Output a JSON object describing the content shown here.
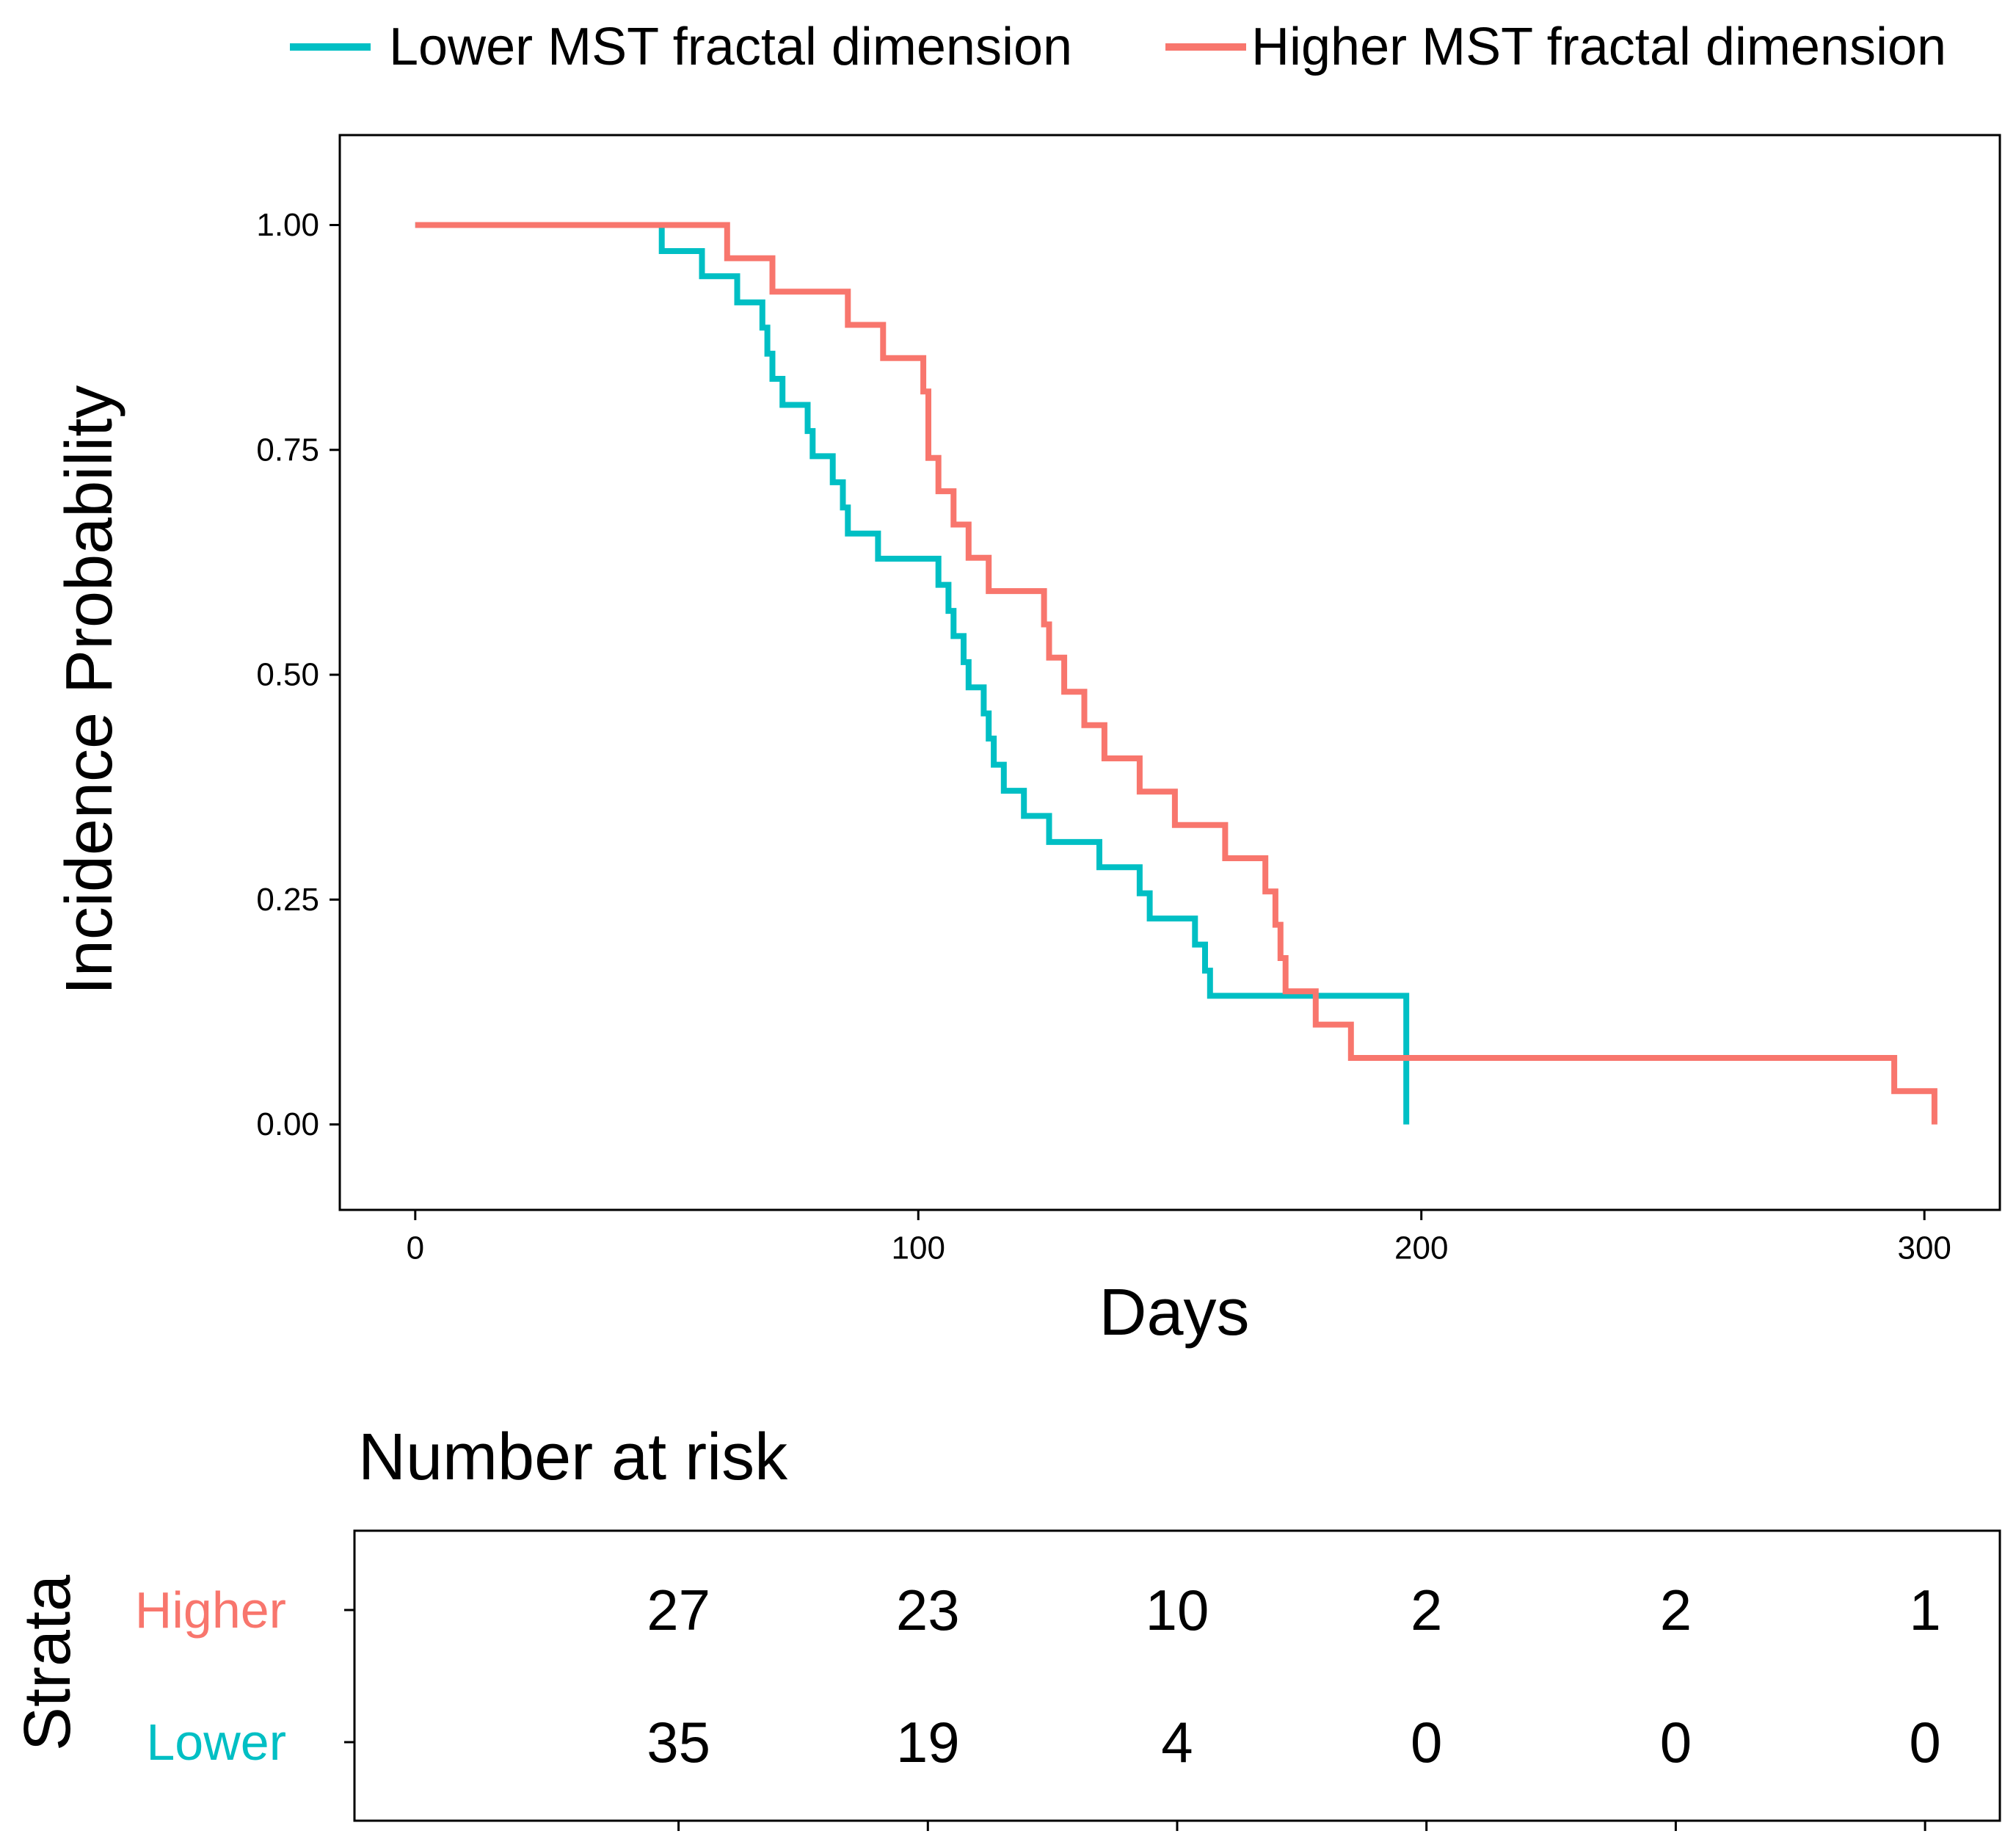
{
  "legend": {
    "items": [
      {
        "name": "Lower MST fractal dimension",
        "color": "#00BFC4"
      },
      {
        "name": "Higher MST fractal dimension",
        "color": "#F8766D"
      }
    ]
  },
  "risk_table": {
    "title": "Number at risk",
    "strata_label": "Strata",
    "strata": [
      {
        "label": "Higher",
        "color": "#F8766D",
        "counts": [
          "27",
          "23",
          "10",
          "2",
          "2",
          "1"
        ]
      },
      {
        "label": "Lower",
        "color": "#00BFC4",
        "counts": [
          "35",
          "19",
          "4",
          "0",
          "0",
          "0"
        ]
      }
    ]
  },
  "chart_data": {
    "type": "line",
    "title": "",
    "xlabel": "Days",
    "ylabel": "Incidence Probability",
    "xlim": [
      -15,
      315
    ],
    "ylim": [
      -0.095,
      1.1
    ],
    "x_ticks": [
      0,
      100,
      200,
      300
    ],
    "x_tick_labels": [
      "0",
      "100",
      "200",
      "300"
    ],
    "y_ticks": [
      0,
      0.25,
      0.5,
      0.75,
      1
    ],
    "y_tick_labels": [
      "0.00",
      "0.25",
      "0.50",
      "0.75",
      "1.00"
    ],
    "risk_times": [
      50,
      100,
      150,
      200,
      250,
      300
    ],
    "grid": false,
    "legend_position": "top",
    "series": [
      {
        "name": "Lower MST fractal dimension",
        "color": "#00BFC4",
        "step": true,
        "x": [
          0,
          49,
          57,
          64,
          69,
          70,
          71,
          73,
          78,
          79,
          83,
          85,
          86,
          92,
          104,
          106,
          107,
          109,
          110,
          113,
          114,
          115,
          117,
          121,
          126,
          136,
          144,
          146,
          155,
          157,
          158,
          197,
          197
        ],
        "y": [
          1.0,
          0.971,
          0.943,
          0.914,
          0.886,
          0.857,
          0.829,
          0.8,
          0.771,
          0.743,
          0.714,
          0.686,
          0.657,
          0.629,
          0.6,
          0.571,
          0.543,
          0.514,
          0.486,
          0.457,
          0.429,
          0.4,
          0.371,
          0.343,
          0.314,
          0.286,
          0.257,
          0.229,
          0.2,
          0.171,
          0.143,
          0.114,
          0.0
        ]
      },
      {
        "name": "Higher MST fractal dimension",
        "color": "#F8766D",
        "step": true,
        "x": [
          0,
          62,
          71,
          86,
          93,
          101,
          102,
          104,
          107,
          110,
          114,
          125,
          126,
          129,
          133,
          137,
          144,
          151,
          161,
          169,
          171,
          172,
          173,
          179,
          186,
          294,
          302,
          302
        ],
        "y": [
          1.0,
          0.963,
          0.926,
          0.889,
          0.852,
          0.815,
          0.741,
          0.704,
          0.667,
          0.63,
          0.593,
          0.556,
          0.519,
          0.481,
          0.444,
          0.407,
          0.37,
          0.333,
          0.296,
          0.259,
          0.222,
          0.185,
          0.148,
          0.111,
          0.074,
          0.037,
          0.037,
          0.0
        ]
      }
    ]
  }
}
